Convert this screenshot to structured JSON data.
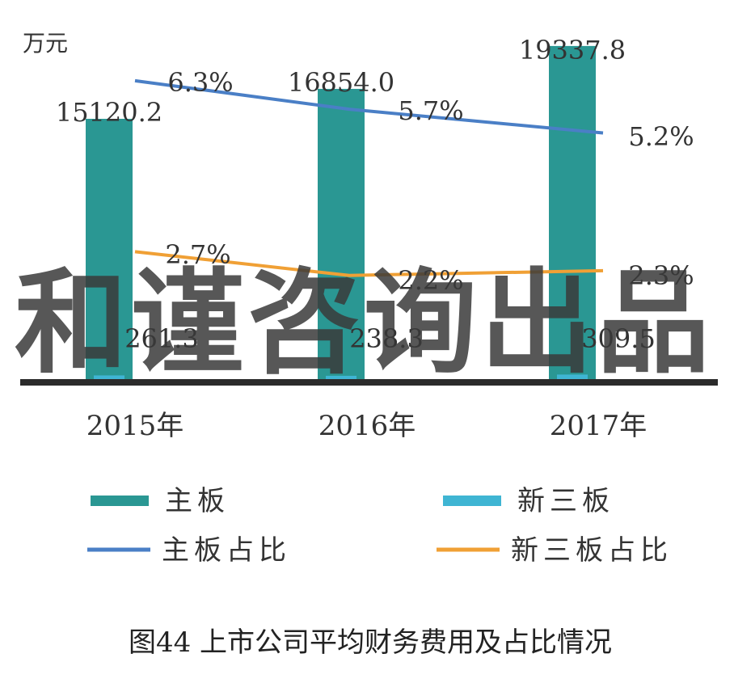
{
  "chart_data": {
    "type": "bar",
    "unit_label": "万元",
    "categories": [
      "2015年",
      "2016年",
      "2017年"
    ],
    "ylim": [
      0,
      22000
    ],
    "y2lim": [
      0,
      0.08
    ],
    "grid": false,
    "legend_position": "bottom",
    "series": [
      {
        "name": "主板",
        "kind": "bar",
        "color": "#2a9793",
        "values": [
          15120.2,
          16854.0,
          19337.8
        ],
        "labels": [
          "15120.2",
          "16854.0",
          "19337.8"
        ]
      },
      {
        "name": "新三板",
        "kind": "bar",
        "color": "#3fb5d3",
        "values": [
          261.3,
          238.3,
          309.5
        ],
        "labels": [
          "261.3",
          "238.3",
          "309.5"
        ]
      },
      {
        "name": "主板占比",
        "kind": "line",
        "axis": "secondary",
        "color": "#4a7fc6",
        "values": [
          0.063,
          0.057,
          0.052
        ],
        "labels": [
          "6.3%",
          "5.7%",
          "5.2%"
        ]
      },
      {
        "name": "新三板占比",
        "kind": "line",
        "axis": "secondary",
        "color": "#f0a035",
        "values": [
          0.027,
          0.022,
          0.023
        ],
        "labels": [
          "2.7%",
          "2.2%",
          "2.3%"
        ]
      }
    ],
    "caption": "图44 上市公司平均财务费用及占比情况",
    "watermark": "和谨咨询出品"
  }
}
